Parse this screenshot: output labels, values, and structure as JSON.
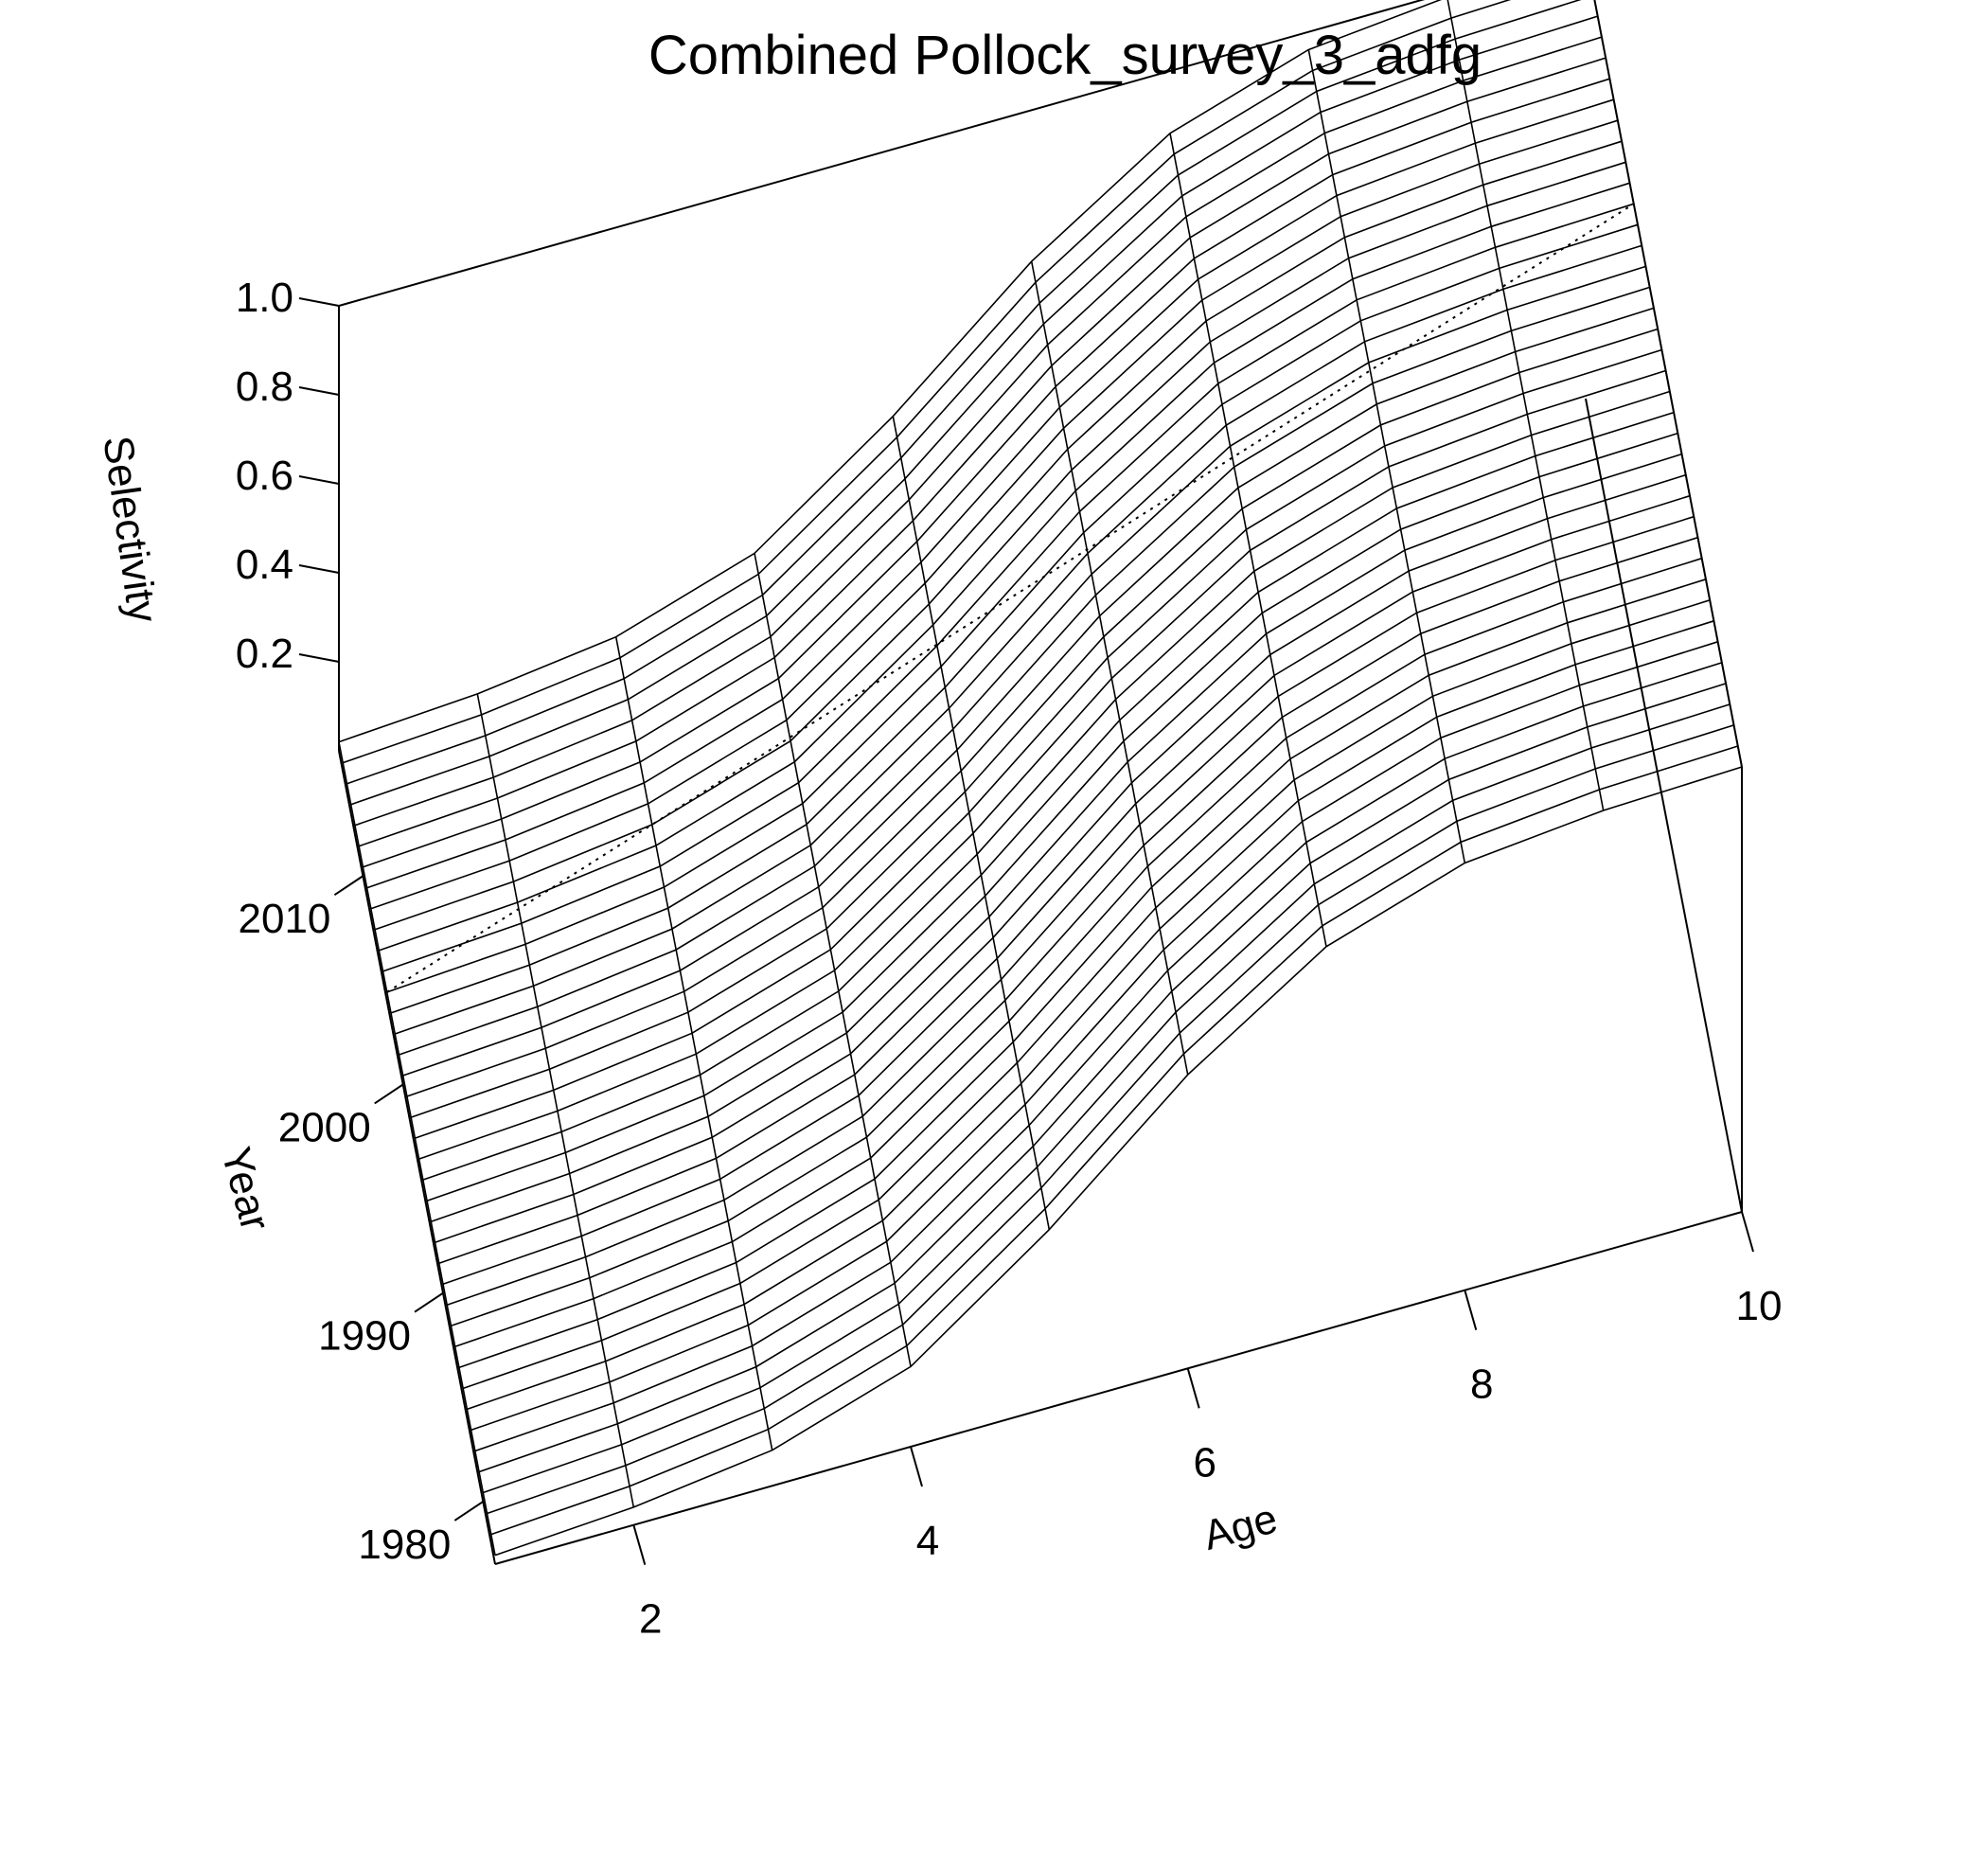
{
  "chart_data": {
    "type": "surface",
    "title": "Combined Pollock_survey_3_adfg",
    "x_axis": {
      "label": "Age",
      "ticks": [
        2,
        4,
        6,
        8,
        10
      ],
      "range": [
        1,
        10
      ]
    },
    "y_axis": {
      "label": "Year",
      "ticks": [
        1980,
        1990,
        2000,
        2010
      ],
      "range": [
        1977,
        2016
      ]
    },
    "z_axis": {
      "label": "Selectivity",
      "ticks": [
        0.2,
        0.4,
        0.6,
        0.8,
        1.0
      ],
      "range": [
        0,
        1
      ]
    },
    "ages": [
      1,
      2,
      3,
      4,
      5,
      6,
      7,
      8,
      9,
      10
    ],
    "year_range": [
      1977,
      2016
    ],
    "selectivity_by_age": [
      0.02,
      0.04,
      0.08,
      0.18,
      0.4,
      0.66,
      0.86,
      0.96,
      0.99,
      1.0
    ],
    "grid": false
  }
}
